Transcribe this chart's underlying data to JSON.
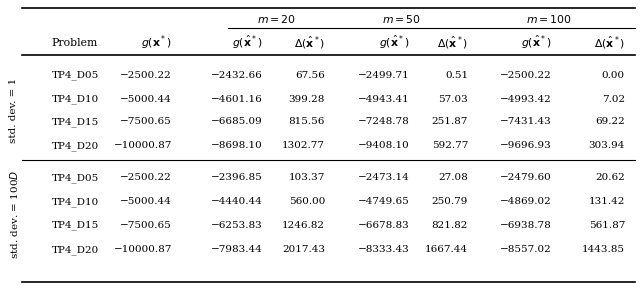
{
  "row_label_1": "std. dev. = 1",
  "row_label_2": "std. dev. = 100×D",
  "section1": [
    [
      "TP4_D05",
      "−2500.22",
      "−2432.66",
      "67.56",
      "−2499.71",
      "0.51",
      "−2500.22",
      "0.00"
    ],
    [
      "TP4_D10",
      "−5000.44",
      "−4601.16",
      "399.28",
      "−4943.41",
      "57.03",
      "−4993.42",
      "7.02"
    ],
    [
      "TP4_D15",
      "−7500.65",
      "−6685.09",
      "815.56",
      "−7248.78",
      "251.87",
      "−7431.43",
      "69.22"
    ],
    [
      "TP4_D20",
      "−10000.87",
      "−8698.10",
      "1302.77",
      "−9408.10",
      "592.77",
      "−9696.93",
      "303.94"
    ]
  ],
  "section2": [
    [
      "TP4_D05",
      "−2500.22",
      "−2396.85",
      "103.37",
      "−2473.14",
      "27.08",
      "−2479.60",
      "20.62"
    ],
    [
      "TP4_D10",
      "−5000.44",
      "−4440.44",
      "560.00",
      "−4749.65",
      "250.79",
      "−4869.02",
      "131.42"
    ],
    [
      "TP4_D15",
      "−7500.65",
      "−6253.83",
      "1246.82",
      "−6678.83",
      "821.82",
      "−6938.78",
      "561.87"
    ],
    [
      "TP4_D20",
      "−10000.87",
      "−7983.44",
      "2017.43",
      "−8333.43",
      "1667.44",
      "−8557.02",
      "1443.85"
    ]
  ],
  "bg_color": "white",
  "text_color": "black",
  "font_size": 7.5,
  "header_font_size": 7.8
}
